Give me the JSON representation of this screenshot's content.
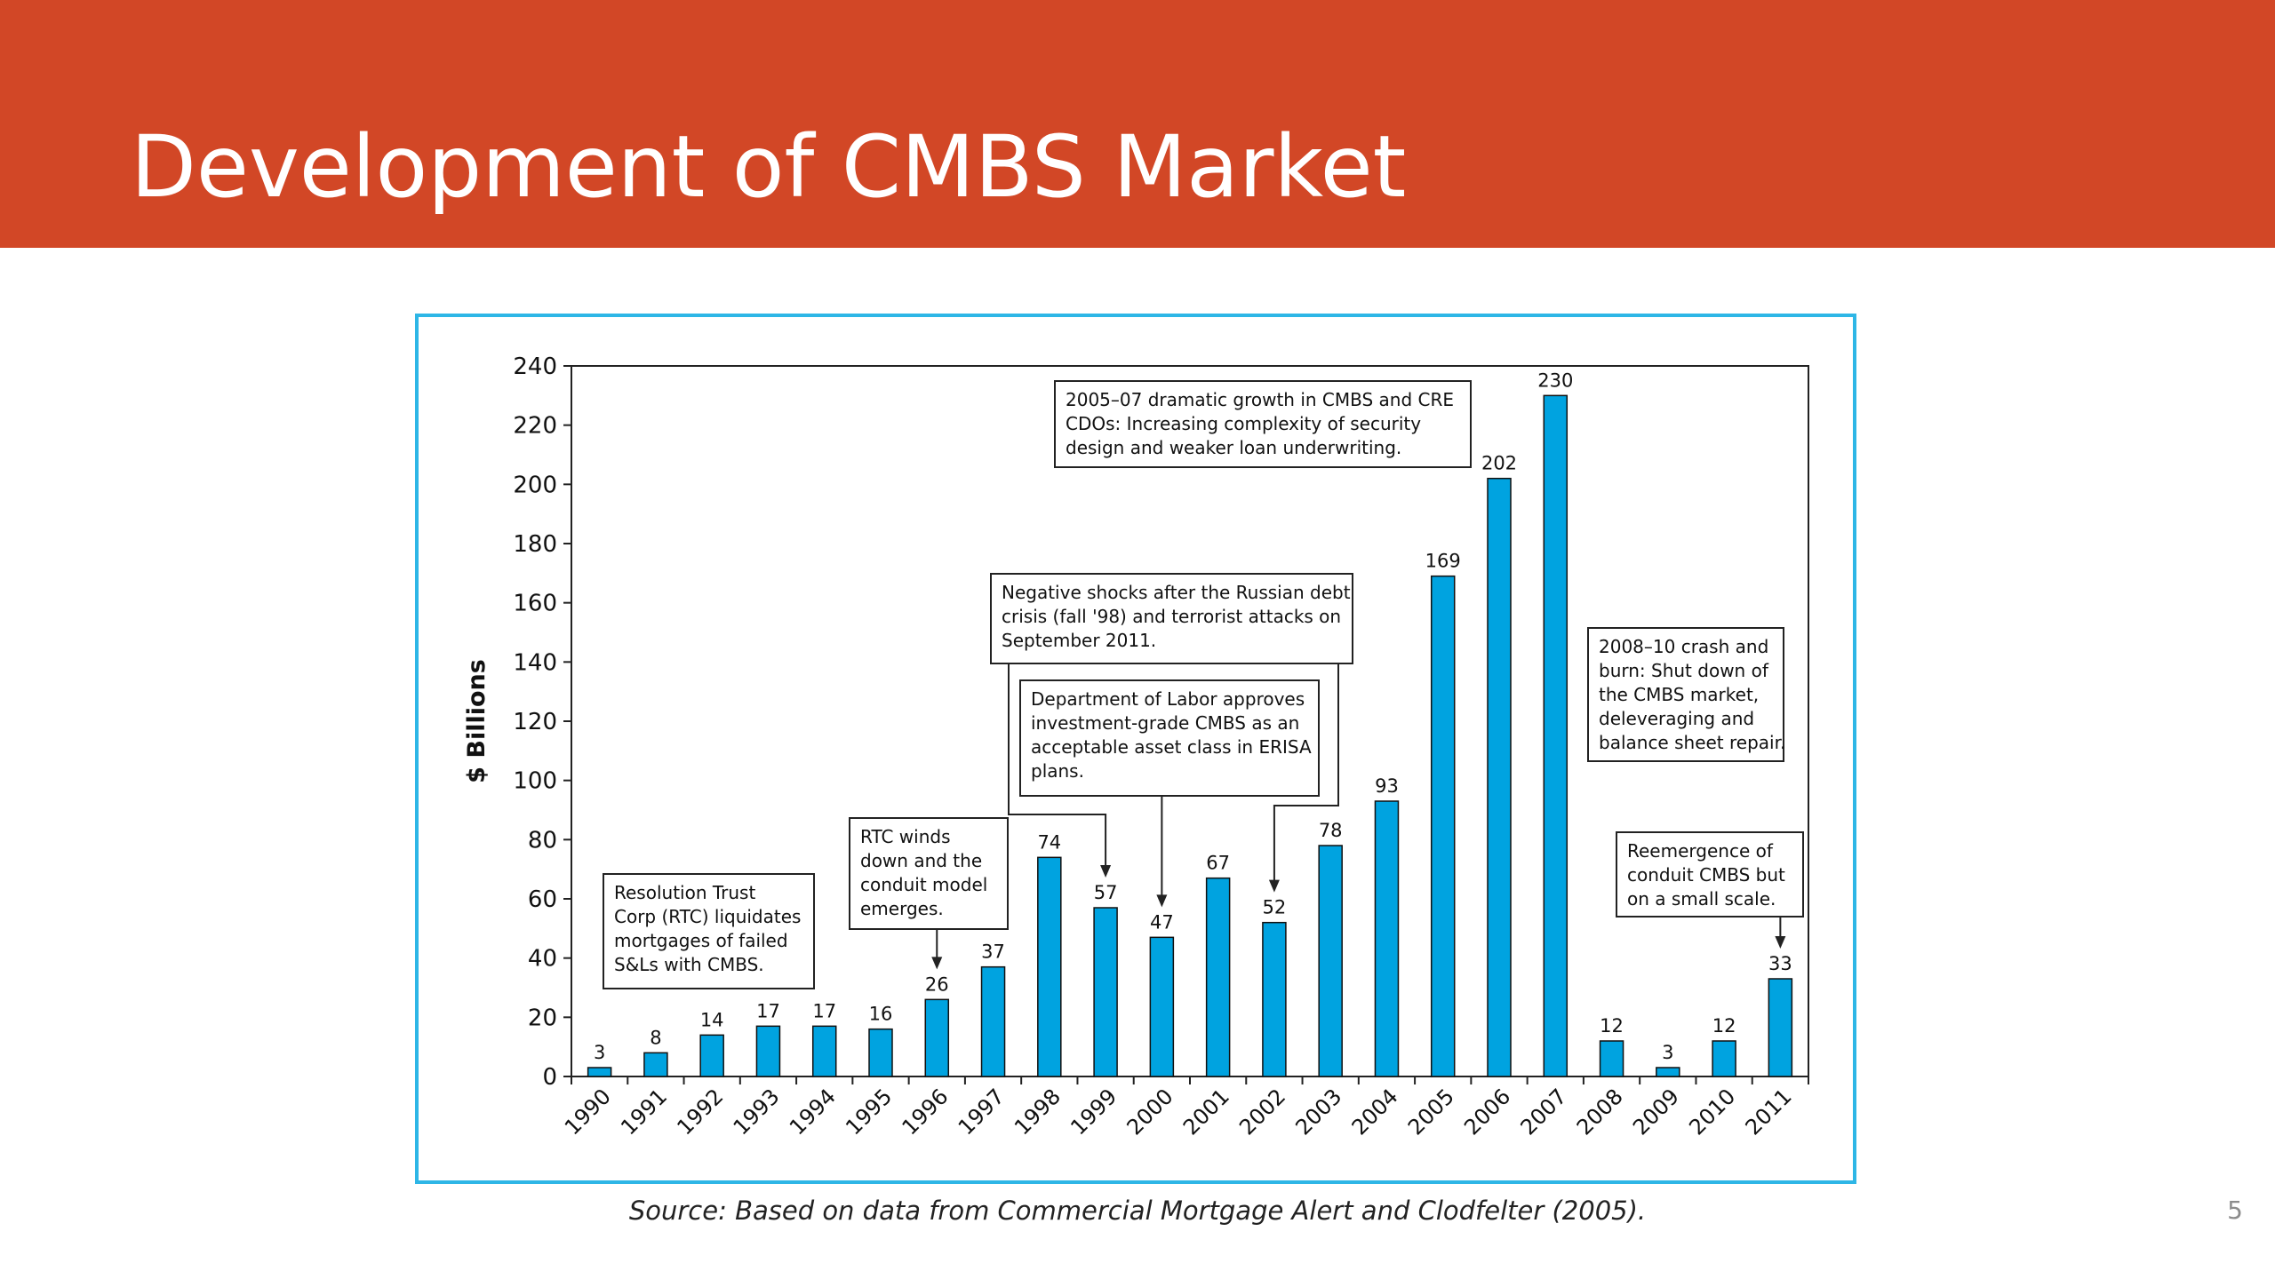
{
  "slide": {
    "title": "Development of CMBS Market",
    "source": "Source: Based on data from Commercial Mortgage Alert and Clodfelter (2005).",
    "page_number": "5"
  },
  "colors": {
    "title_bar": "#D24726",
    "frame_border": "#2EB6E6",
    "bar_fill": "#00A3E0"
  },
  "chart_data": {
    "type": "bar",
    "title": "",
    "xlabel": "",
    "ylabel": "$ Billions",
    "ylim": [
      0,
      240
    ],
    "yticks": [
      0,
      20,
      40,
      60,
      80,
      100,
      120,
      140,
      160,
      180,
      200,
      220,
      240
    ],
    "grid": false,
    "categories": [
      "1990",
      "1991",
      "1992",
      "1993",
      "1994",
      "1995",
      "1996",
      "1997",
      "1998",
      "1999",
      "2000",
      "2001",
      "2002",
      "2003",
      "2004",
      "2005",
      "2006",
      "2007",
      "2008",
      "2009",
      "2010",
      "2011"
    ],
    "values": [
      3,
      8,
      14,
      17,
      17,
      16,
      26,
      37,
      74,
      57,
      47,
      67,
      52,
      78,
      93,
      169,
      202,
      230,
      12,
      3,
      12,
      33
    ],
    "annotations": [
      {
        "id": "rtc",
        "lines": [
          "Resolution Trust",
          "Corp (RTC) liquidates",
          "mortgages of failed",
          "S&Ls with CMBS."
        ],
        "points_to": []
      },
      {
        "id": "rtc-winds",
        "lines": [
          "RTC winds",
          "down and the",
          "conduit model",
          "emerges."
        ],
        "points_to": [
          "1996"
        ]
      },
      {
        "id": "shocks",
        "lines": [
          "Negative shocks after the Russian debt",
          "crisis (fall '98) and terrorist attacks on",
          "September 2011."
        ],
        "points_to": [
          "1999",
          "2002"
        ]
      },
      {
        "id": "dol",
        "lines": [
          "Department of Labor approves",
          "investment-grade CMBS as an",
          "acceptable asset class in ERISA",
          "plans."
        ],
        "points_to": [
          "2000"
        ]
      },
      {
        "id": "growth",
        "lines": [
          "2005–07 dramatic growth in CMBS and CRE",
          "CDOs: Increasing complexity of security",
          "design and weaker loan underwriting."
        ],
        "points_to": []
      },
      {
        "id": "crash",
        "lines": [
          "2008–10 crash and",
          "burn: Shut down of",
          "the CMBS market,",
          "deleveraging and",
          "balance sheet repair."
        ],
        "points_to": []
      },
      {
        "id": "reemergence",
        "lines": [
          "Reemergence of",
          "conduit CMBS but",
          "on a small scale."
        ],
        "points_to": [
          "2011"
        ]
      }
    ]
  }
}
